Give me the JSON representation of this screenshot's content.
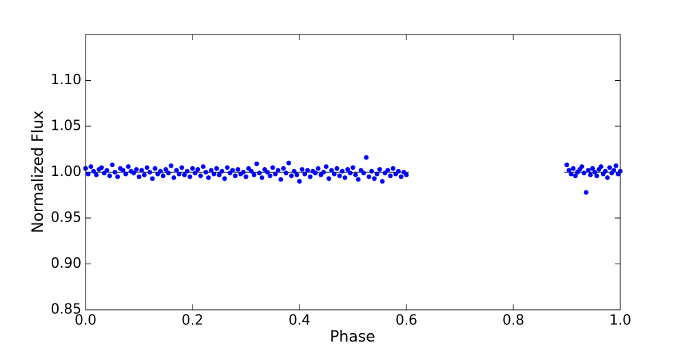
{
  "chart_data": {
    "type": "scatter",
    "xlabel": "Phase",
    "ylabel": "Normalized Flux",
    "xlim": [
      0,
      1
    ],
    "ylim": [
      0.85,
      1.15
    ],
    "xticks": [
      {
        "value": 0,
        "label": "0.0"
      },
      0.2,
      0.4,
      0.6,
      0.8,
      {
        "value": 1,
        "label": "1.0"
      }
    ],
    "yticks": [
      0.85,
      {
        "value": 0.9,
        "label": "0.90"
      },
      0.95,
      {
        "value": 1,
        "label": "1.00"
      },
      1.05,
      {
        "value": 1.1,
        "label": "1.10"
      }
    ],
    "color": "#0000ff",
    "x": [
      0,
      0.005,
      0.01,
      0.015,
      0.02,
      0.025,
      0.03,
      0.035,
      0.04,
      0.045,
      0.05,
      0.055,
      0.06,
      0.065,
      0.07,
      0.075,
      0.08,
      0.085,
      0.09,
      0.095,
      0.1,
      0.105,
      0.11,
      0.115,
      0.12,
      0.125,
      0.13,
      0.135,
      0.14,
      0.145,
      0.15,
      0.155,
      0.16,
      0.165,
      0.17,
      0.175,
      0.18,
      0.185,
      0.19,
      0.195,
      0.2,
      0.205,
      0.21,
      0.215,
      0.22,
      0.225,
      0.23,
      0.235,
      0.24,
      0.245,
      0.25,
      0.255,
      0.26,
      0.265,
      0.27,
      0.275,
      0.28,
      0.285,
      0.29,
      0.295,
      0.3,
      0.305,
      0.31,
      0.315,
      0.32,
      0.325,
      0.33,
      0.335,
      0.34,
      0.345,
      0.35,
      0.355,
      0.36,
      0.365,
      0.37,
      0.375,
      0.38,
      0.385,
      0.39,
      0.395,
      0.4,
      0.405,
      0.41,
      0.415,
      0.42,
      0.425,
      0.43,
      0.435,
      0.44,
      0.445,
      0.45,
      0.455,
      0.46,
      0.465,
      0.47,
      0.475,
      0.48,
      0.485,
      0.49,
      0.495,
      0.5,
      0.505,
      0.51,
      0.515,
      0.52,
      0.525,
      0.53,
      0.535,
      0.54,
      0.545,
      0.55,
      0.555,
      0.56,
      0.565,
      0.57,
      0.575,
      0.58,
      0.585,
      0.59,
      0.595,
      0.6,
      0.9,
      0.904,
      0.908,
      0.912,
      0.916,
      0.92,
      0.924,
      0.928,
      0.932,
      0.936,
      0.94,
      0.944,
      0.948,
      0.952,
      0.956,
      0.96,
      0.964,
      0.968,
      0.972,
      0.976,
      0.98,
      0.984,
      0.988,
      0.992,
      0.996,
      1.0
    ],
    "values": [
      1.004,
      0.998,
      1.006,
      1.001,
      0.997,
      1.003,
      1.005,
      0.999,
      1.002,
      0.996,
      1.008,
      1.0,
      0.995,
      1.004,
      1.002,
      0.998,
      1.006,
      1.001,
      0.999,
      1.003,
      0.995,
      1.002,
      0.997,
      1.005,
      1.0,
      0.993,
      1.004,
      0.998,
      1.001,
      0.996,
      1.003,
      0.999,
      1.007,
      0.994,
      1.002,
      0.998,
      1.005,
      0.997,
      1.001,
      0.995,
      1.004,
      0.999,
      1.003,
      0.996,
      1.006,
      1.0,
      0.994,
      1.002,
      0.998,
      1.004,
      0.997,
      1.001,
      0.993,
      1.005,
      0.999,
      1.002,
      0.996,
      1.003,
      0.998,
      1.0,
      0.995,
      1.004,
      1.001,
      0.997,
      1.009,
      0.999,
      0.994,
      1.003,
      1.0,
      0.996,
      1.005,
      0.998,
      1.002,
      0.992,
      1.004,
      0.999,
      1.01,
      0.996,
      1.001,
      0.997,
      0.99,
      1.003,
      0.998,
      1.002,
      0.995,
      1.001,
      0.999,
      1.004,
      0.997,
      1.0,
      1.006,
      0.993,
      1.002,
      0.998,
      1.004,
      0.996,
      1.001,
      0.994,
      1.003,
      0.999,
      1.005,
      0.997,
      0.992,
      1.002,
      0.999,
      1.016,
      0.995,
      1.001,
      0.993,
      0.998,
      1.003,
      0.99,
      0.999,
      1.002,
      0.996,
      1.004,
      0.998,
      1.001,
      0.995,
      1.0,
      0.997,
      1.008,
      1.002,
      0.998,
      1.004,
      0.996,
      1.0,
      1.003,
      1.006,
      0.999,
      0.978,
      1.002,
      0.997,
      1.004,
      1.0,
      0.996,
      1.003,
      1.006,
      0.998,
      1.001,
      0.994,
      1.005,
      0.999,
      1.002,
      1.007,
      0.998,
      1.001
    ],
    "model_line": {
      "color": "#000000",
      "x": [
        0,
        0.605,
        0.75,
        0.895,
        1.0
      ],
      "values": [
        1,
        1,
        null,
        1,
        1
      ]
    }
  }
}
